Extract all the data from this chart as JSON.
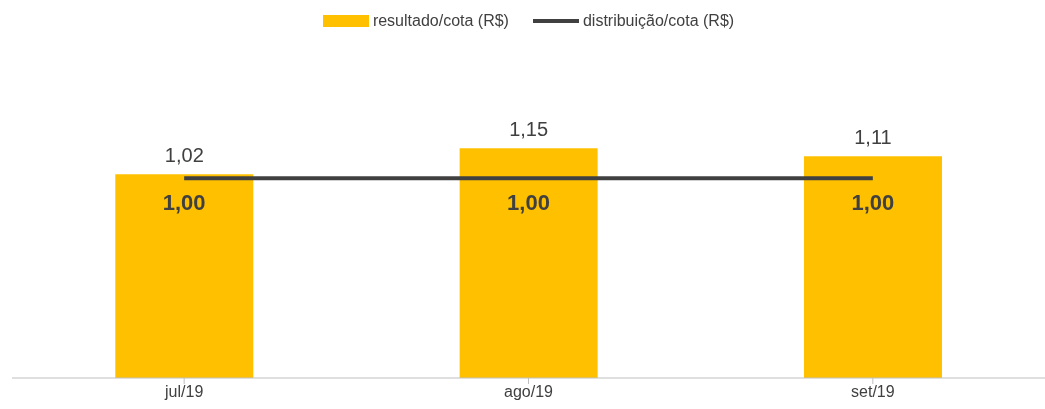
{
  "chart_data": {
    "type": "bar",
    "categories": [
      "jul/19",
      "ago/19",
      "set/19"
    ],
    "legend": "top",
    "series": [
      {
        "name": "resultado/cota (R$)",
        "color": "#ffc000",
        "values": [
          1.02,
          1.15,
          1.11
        ],
        "value_labels": [
          "1,02",
          "1,15",
          "1,11"
        ]
      },
      {
        "name": "distribuição/cota (R$)",
        "type": "line",
        "color": "#404040",
        "values": [
          1.0,
          1.0,
          1.0
        ],
        "value_labels": [
          "1,00",
          "1,00",
          "1,00"
        ]
      }
    ]
  }
}
